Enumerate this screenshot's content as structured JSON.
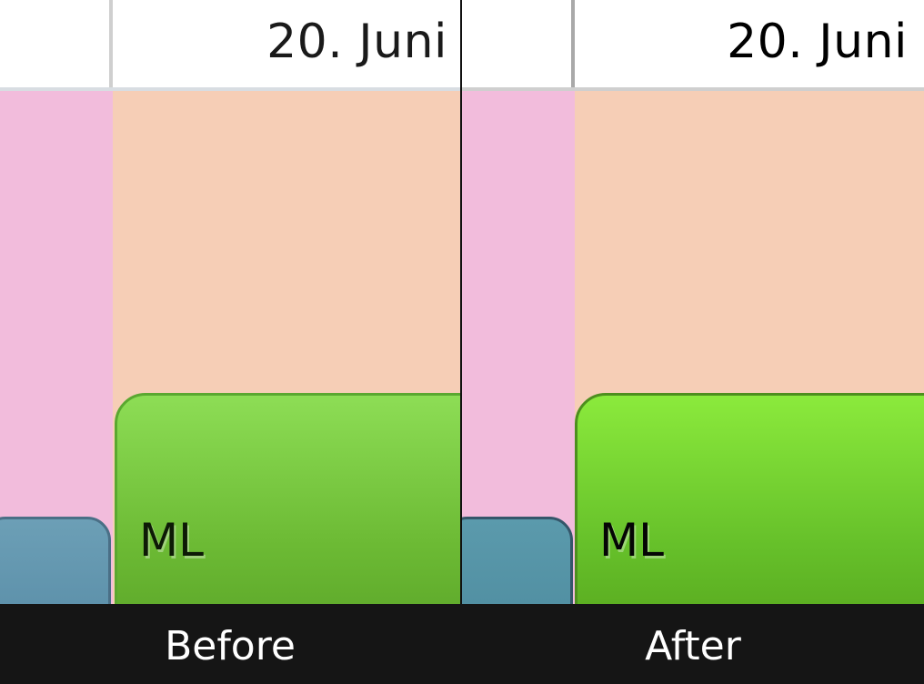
{
  "panels": {
    "before": {
      "date": "20. Juni",
      "event_label": "ML"
    },
    "after": {
      "date": "20. Juni",
      "event_label": "ML"
    }
  },
  "captions": {
    "before": "Before",
    "after": "After"
  },
  "colors": {
    "header_bg": "#ffffff",
    "pink_column": "#f2bcdc",
    "peach_area": "#f6ceb6",
    "green_event": "#6cba34",
    "blue_event": "#5a8ea8",
    "background": "#151515"
  }
}
